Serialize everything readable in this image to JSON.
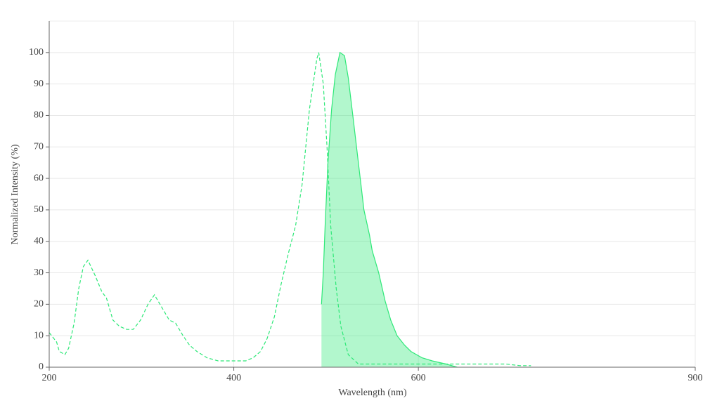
{
  "chart_data": {
    "type": "line",
    "xlabel": "Wavelength (nm)",
    "ylabel": "Normalized Intensity (%)",
    "xlim": [
      200,
      900
    ],
    "xticks": [
      200,
      400,
      600,
      900
    ],
    "ylim": [
      0,
      110
    ],
    "yticks": [
      0,
      10,
      20,
      30,
      40,
      50,
      60,
      70,
      80,
      90,
      100
    ],
    "grid": true,
    "series": [
      {
        "color": "#2ee878",
        "style": "dashed",
        "fill": false,
        "x": [
          200,
          208,
          211,
          217,
          221,
          227,
          232,
          237,
          242,
          250,
          257,
          262,
          269,
          276,
          284,
          291,
          299,
          307,
          314,
          322,
          330,
          337,
          345,
          352,
          360,
          371,
          383,
          413,
          421,
          429,
          436,
          444,
          451,
          459,
          467,
          474,
          482,
          490,
          492,
          497,
          501,
          505,
          511,
          516,
          524,
          535,
          558,
          573,
          604,
          680,
          695,
          710,
          722
        ],
        "values": [
          11,
          8,
          5,
          4,
          6,
          14,
          25,
          32,
          34,
          29,
          24,
          22,
          15,
          13,
          12,
          12,
          15,
          20,
          23,
          19,
          15,
          14,
          10,
          7,
          5,
          3,
          2,
          2,
          3,
          5,
          9,
          16,
          26,
          36,
          45,
          58,
          82,
          98,
          100,
          90,
          70,
          45,
          25,
          13,
          4,
          1,
          1,
          1,
          1,
          1,
          1,
          0.5,
          0.5
        ]
      },
      {
        "color": "#2ee878",
        "style": "solid",
        "fill": true,
        "x": [
          495,
          497,
          499,
          502,
          506,
          510,
          515,
          520,
          524,
          529,
          535,
          541,
          547,
          550,
          557,
          564,
          570,
          577,
          585,
          592,
          604,
          615,
          630,
          642
        ],
        "values": [
          20,
          30,
          45,
          65,
          82,
          93,
          100,
          99,
          92,
          80,
          65,
          50,
          42,
          37,
          30,
          21,
          15,
          10,
          7,
          5,
          3,
          2,
          1,
          0
        ]
      }
    ]
  }
}
